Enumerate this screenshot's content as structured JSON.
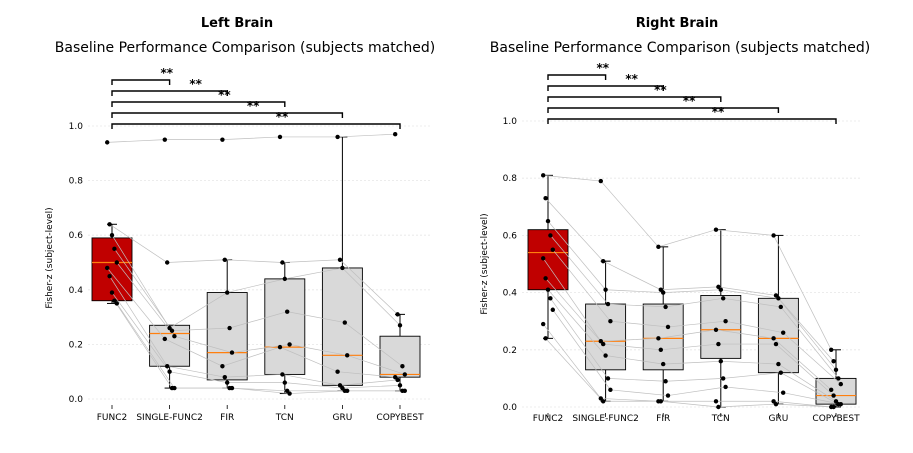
{
  "panels": [
    {
      "header": "Left Brain",
      "title": "Baseline Performance Comparison (subjects matched)",
      "ylabel": "Fisher-z (subject-level)",
      "yticks": [
        "0.0",
        "0.2",
        "0.4",
        "0.6",
        "0.8",
        "1.0"
      ],
      "significance": [
        "**",
        "**",
        "**",
        "**",
        "**"
      ]
    },
    {
      "header": "Right Brain",
      "title": "Baseline Performance Comparison (subjects matched)",
      "ylabel": "Fisher-z (subject-level)",
      "yticks": [
        "0.0",
        "0.2",
        "0.4",
        "0.6",
        "0.8",
        "1.0"
      ],
      "significance": [
        "**",
        "**",
        "**",
        "**",
        "**"
      ]
    }
  ],
  "colors": {
    "highlight_box": "#c00000",
    "box": "#d9d9d9",
    "median": "#ff7f0e",
    "grid": "#e6e6e6",
    "line": "#bfbfbf"
  },
  "chart_data": [
    {
      "type": "box",
      "title": "Left Brain",
      "subtitle": "Baseline Performance Comparison (subjects matched)",
      "ylabel": "Fisher-z (subject-level)",
      "ylim": [
        0.0,
        1.05
      ],
      "grid": "horizontal",
      "categories": [
        "FUNC2",
        "SINGLE-FUNC2",
        "FIR",
        "TCN",
        "GRU",
        "COPYBEST"
      ],
      "box_stats": [
        {
          "q1": 0.36,
          "median": 0.5,
          "q3": 0.59,
          "whisker_low": 0.35,
          "whisker_high": 0.64
        },
        {
          "q1": 0.12,
          "median": 0.24,
          "q3": 0.27,
          "whisker_low": 0.04,
          "whisker_high": 0.27
        },
        {
          "q1": 0.07,
          "median": 0.17,
          "q3": 0.39,
          "whisker_low": 0.04,
          "whisker_high": 0.51
        },
        {
          "q1": 0.09,
          "median": 0.19,
          "q3": 0.44,
          "whisker_low": 0.02,
          "whisker_high": 0.5
        },
        {
          "q1": 0.05,
          "median": 0.16,
          "q3": 0.48,
          "whisker_low": 0.03,
          "whisker_high": 0.96
        },
        {
          "q1": 0.08,
          "median": 0.09,
          "q3": 0.23,
          "whisker_low": 0.03,
          "whisker_high": 0.31
        }
      ],
      "subjects": [
        [
          0.94,
          0.95,
          0.95,
          0.96,
          0.96,
          0.97
        ],
        [
          0.64,
          0.5,
          0.51,
          0.5,
          0.51,
          0.31
        ],
        [
          0.6,
          0.26,
          0.39,
          0.44,
          0.48,
          0.27
        ],
        [
          0.55,
          0.25,
          0.26,
          0.32,
          0.28,
          0.12
        ],
        [
          0.5,
          0.23,
          0.17,
          0.2,
          0.16,
          0.09
        ],
        [
          0.48,
          0.22,
          0.12,
          0.19,
          0.1,
          0.08
        ],
        [
          0.45,
          0.12,
          0.08,
          0.09,
          0.05,
          0.07
        ],
        [
          0.39,
          0.1,
          0.06,
          0.06,
          0.04,
          0.05
        ],
        [
          0.36,
          0.04,
          0.04,
          0.03,
          0.03,
          0.03
        ],
        [
          0.35,
          0.04,
          0.04,
          0.02,
          0.03,
          0.03
        ]
      ],
      "significance": [
        {
          "from": "FUNC2",
          "to": "SINGLE-FUNC2",
          "label": "**"
        },
        {
          "from": "FUNC2",
          "to": "FIR",
          "label": "**"
        },
        {
          "from": "FUNC2",
          "to": "TCN",
          "label": "**"
        },
        {
          "from": "FUNC2",
          "to": "GRU",
          "label": "**"
        },
        {
          "from": "FUNC2",
          "to": "COPYBEST",
          "label": "**"
        }
      ]
    },
    {
      "type": "box",
      "title": "Right Brain",
      "subtitle": "Baseline Performance Comparison (subjects matched)",
      "ylabel": "Fisher-z (subject-level)",
      "ylim": [
        0.0,
        1.05
      ],
      "grid": "horizontal",
      "categories": [
        "FUNC2",
        "SINGLE-FUNC2",
        "FIR",
        "TCN",
        "GRU",
        "COPYBEST"
      ],
      "box_stats": [
        {
          "q1": 0.41,
          "median": 0.54,
          "q3": 0.62,
          "whisker_low": 0.24,
          "whisker_high": 0.81
        },
        {
          "q1": 0.13,
          "median": 0.23,
          "q3": 0.36,
          "whisker_low": 0.02,
          "whisker_high": 0.51
        },
        {
          "q1": 0.13,
          "median": 0.24,
          "q3": 0.36,
          "whisker_low": 0.02,
          "whisker_high": 0.56
        },
        {
          "q1": 0.17,
          "median": 0.27,
          "q3": 0.39,
          "whisker_low": 0.0,
          "whisker_high": 0.62
        },
        {
          "q1": 0.12,
          "median": 0.24,
          "q3": 0.38,
          "whisker_low": 0.01,
          "whisker_high": 0.6
        },
        {
          "q1": 0.01,
          "median": 0.04,
          "q3": 0.1,
          "whisker_low": 0.0,
          "whisker_high": 0.2
        }
      ],
      "subjects": [
        [
          0.81,
          0.79,
          0.56,
          0.62,
          0.6,
          0.2
        ],
        [
          0.73,
          0.51,
          0.41,
          0.42,
          0.39,
          0.16
        ],
        [
          0.65,
          0.41,
          0.4,
          0.41,
          0.38,
          0.13
        ],
        [
          0.6,
          0.36,
          0.35,
          0.38,
          0.35,
          0.1
        ],
        [
          0.55,
          0.3,
          0.28,
          0.3,
          0.26,
          0.08
        ],
        [
          0.52,
          0.23,
          0.24,
          0.27,
          0.24,
          0.06
        ],
        [
          0.45,
          0.22,
          0.2,
          0.22,
          0.22,
          0.04
        ],
        [
          0.41,
          0.18,
          0.15,
          0.16,
          0.15,
          0.02
        ],
        [
          0.38,
          0.1,
          0.09,
          0.1,
          0.12,
          0.01
        ],
        [
          0.34,
          0.06,
          0.04,
          0.07,
          0.05,
          0.01
        ],
        [
          0.29,
          0.03,
          0.02,
          0.02,
          0.02,
          0.0
        ],
        [
          0.24,
          0.02,
          0.02,
          0.0,
          0.01,
          0.0
        ]
      ],
      "significance": [
        {
          "from": "FUNC2",
          "to": "SINGLE-FUNC2",
          "label": "**"
        },
        {
          "from": "FUNC2",
          "to": "FIR",
          "label": "**"
        },
        {
          "from": "FUNC2",
          "to": "TCN",
          "label": "**"
        },
        {
          "from": "FUNC2",
          "to": "GRU",
          "label": "**"
        },
        {
          "from": "FUNC2",
          "to": "COPYBEST",
          "label": "**"
        }
      ]
    }
  ]
}
